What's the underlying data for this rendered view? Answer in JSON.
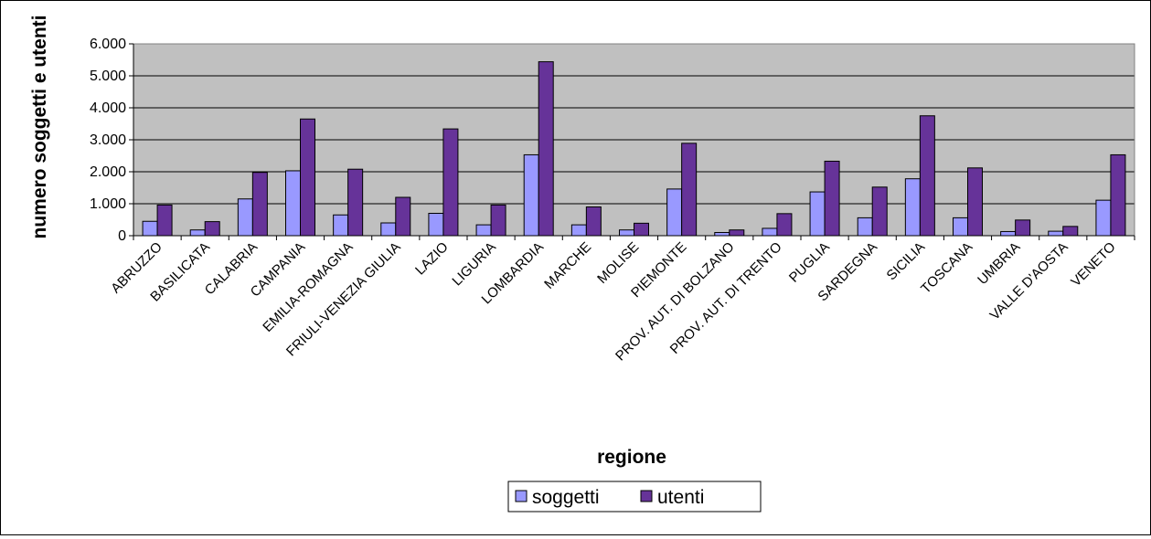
{
  "chart_data": {
    "type": "bar",
    "title": "",
    "xlabel": "regione",
    "ylabel": "numero soggetti e utenti",
    "ylim": [
      0,
      6000
    ],
    "yticks": [
      "0",
      "1.000",
      "2.000",
      "3.000",
      "4.000",
      "5.000",
      "6.000"
    ],
    "grid": true,
    "legend_position": "bottom",
    "categories": [
      "ABRUZZO",
      "BASILICATA",
      "CALABRIA",
      "CAMPANIA",
      "EMILIA-ROMAGNA",
      "FRIULI-VENEZIA GIULIA",
      "LAZIO",
      "LIGURIA",
      "LOMBARDIA",
      "MARCHE",
      "MOLISE",
      "PIEMONTE",
      "PROV. AUT. DI BOLZANO",
      "PROV. AUT. DI TRENTO",
      "PUGLIA",
      "SARDEGNA",
      "SICILIA",
      "TOSCANA",
      "UMBRIA",
      "VALLE D'AOSTA",
      "VENETO"
    ],
    "series": [
      {
        "name": "soggetti",
        "color": "#9999FF",
        "values": [
          450,
          180,
          1150,
          2030,
          650,
          400,
          700,
          340,
          2530,
          340,
          180,
          1460,
          100,
          230,
          1370,
          560,
          1780,
          560,
          130,
          140,
          1110
        ]
      },
      {
        "name": "utenti",
        "color": "#663399",
        "values": [
          960,
          440,
          1980,
          3650,
          2080,
          1200,
          3340,
          960,
          5440,
          900,
          390,
          2890,
          180,
          690,
          2330,
          1520,
          3750,
          2120,
          490,
          290,
          2530
        ]
      }
    ],
    "colors": {
      "plot_background": "#C0C0C0",
      "gridline": "#000000"
    }
  }
}
